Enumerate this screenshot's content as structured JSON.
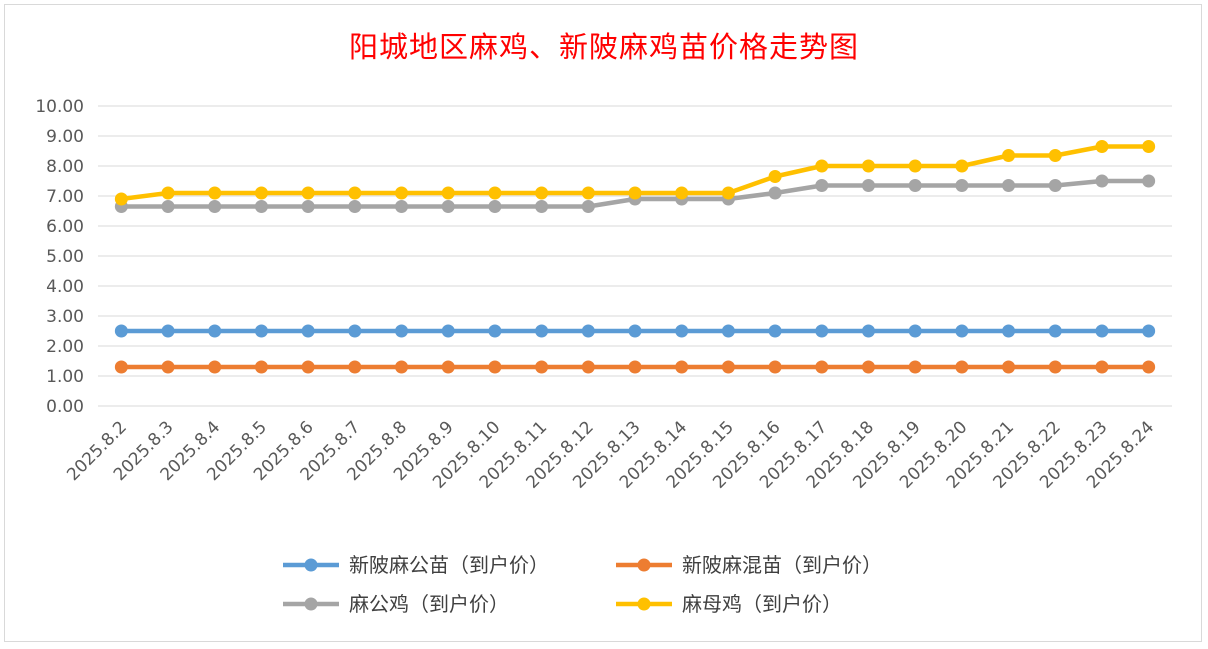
{
  "chart_data": {
    "type": "line",
    "title": "阳城地区麻鸡、新陂麻鸡苗价格走势图",
    "xlabel": "",
    "ylabel": "",
    "ylim": [
      0,
      10
    ],
    "yticks": [
      "0.00",
      "1.00",
      "2.00",
      "3.00",
      "4.00",
      "5.00",
      "6.00",
      "7.00",
      "8.00",
      "9.00",
      "10.00"
    ],
    "grid": true,
    "legend_position": "bottom",
    "x": [
      "2025.8.2",
      "2025.8.3",
      "2025.8.4",
      "2025.8.5",
      "2025.8.6",
      "2025.8.7",
      "2025.8.8",
      "2025.8.9",
      "2025.8.10",
      "2025.8.11",
      "2025.8.12",
      "2025.8.13",
      "2025.8.14",
      "2025.8.15",
      "2025.8.16",
      "2025.8.17",
      "2025.8.18",
      "2025.8.19",
      "2025.8.20",
      "2025.8.21",
      "2025.8.22",
      "2025.8.23",
      "2025.8.24"
    ],
    "series": [
      {
        "name": "新陂麻公苗（到户价）",
        "color": "#5b9bd5",
        "values": [
          2.5,
          2.5,
          2.5,
          2.5,
          2.5,
          2.5,
          2.5,
          2.5,
          2.5,
          2.5,
          2.5,
          2.5,
          2.5,
          2.5,
          2.5,
          2.5,
          2.5,
          2.5,
          2.5,
          2.5,
          2.5,
          2.5,
          2.5
        ]
      },
      {
        "name": "新陂麻混苗（到户价）",
        "color": "#ed7d31",
        "values": [
          1.3,
          1.3,
          1.3,
          1.3,
          1.3,
          1.3,
          1.3,
          1.3,
          1.3,
          1.3,
          1.3,
          1.3,
          1.3,
          1.3,
          1.3,
          1.3,
          1.3,
          1.3,
          1.3,
          1.3,
          1.3,
          1.3,
          1.3
        ]
      },
      {
        "name": "麻公鸡（到户价）",
        "color": "#a5a5a5",
        "values": [
          6.65,
          6.65,
          6.65,
          6.65,
          6.65,
          6.65,
          6.65,
          6.65,
          6.65,
          6.65,
          6.65,
          6.9,
          6.9,
          6.9,
          7.1,
          7.35,
          7.35,
          7.35,
          7.35,
          7.35,
          7.35,
          7.5,
          7.5
        ]
      },
      {
        "name": "麻母鸡（到户价）",
        "color": "#ffc000",
        "values": [
          6.9,
          7.1,
          7.1,
          7.1,
          7.1,
          7.1,
          7.1,
          7.1,
          7.1,
          7.1,
          7.1,
          7.1,
          7.1,
          7.1,
          7.65,
          8.0,
          8.0,
          8.0,
          8.0,
          8.35,
          8.35,
          8.65,
          8.65
        ]
      }
    ]
  }
}
